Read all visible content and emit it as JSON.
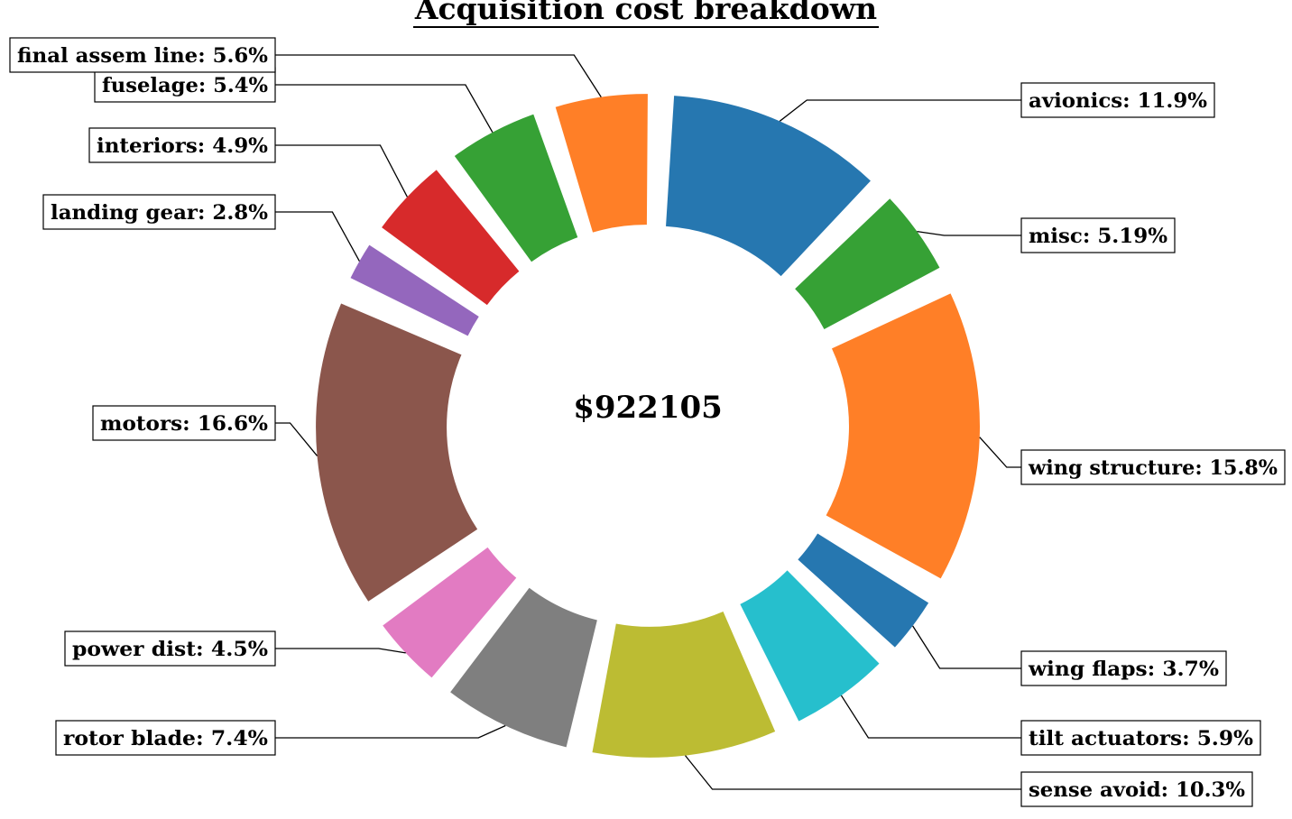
{
  "chart_data": {
    "type": "pie",
    "title": "Acquisition cost breakdown",
    "center_text": "$922105",
    "donut": true,
    "slices": [
      {
        "label": "avionics",
        "percent": "11.9%",
        "value": 11.9,
        "color": "#2677b0"
      },
      {
        "label": "misc",
        "percent": "5.19%",
        "value": 5.19,
        "color": "#36a135"
      },
      {
        "label": "wing structure",
        "percent": "15.8%",
        "value": 15.8,
        "color": "#ff7f27"
      },
      {
        "label": "wing flaps",
        "percent": "3.7%",
        "value": 3.7,
        "color": "#2677b0"
      },
      {
        "label": "tilt actuators",
        "percent": "5.9%",
        "value": 5.9,
        "color": "#26bfcd"
      },
      {
        "label": "sense avoid",
        "percent": "10.3%",
        "value": 10.3,
        "color": "#bcbc33"
      },
      {
        "label": "rotor blade",
        "percent": "7.4%",
        "value": 7.4,
        "color": "#7f7f7f"
      },
      {
        "label": "power dist",
        "percent": "4.5%",
        "value": 4.5,
        "color": "#e27bc2"
      },
      {
        "label": "motors",
        "percent": "16.6%",
        "value": 16.6,
        "color": "#8b564c"
      },
      {
        "label": "landing gear",
        "percent": "2.8%",
        "value": 2.8,
        "color": "#9467bd"
      },
      {
        "label": "interiors",
        "percent": "4.9%",
        "value": 4.9,
        "color": "#d72a2b"
      },
      {
        "label": "fuselage",
        "percent": "5.4%",
        "value": 5.4,
        "color": "#36a135"
      },
      {
        "label": "final assem line",
        "percent": "5.6%",
        "value": 5.6,
        "color": "#ff7f27"
      }
    ]
  }
}
